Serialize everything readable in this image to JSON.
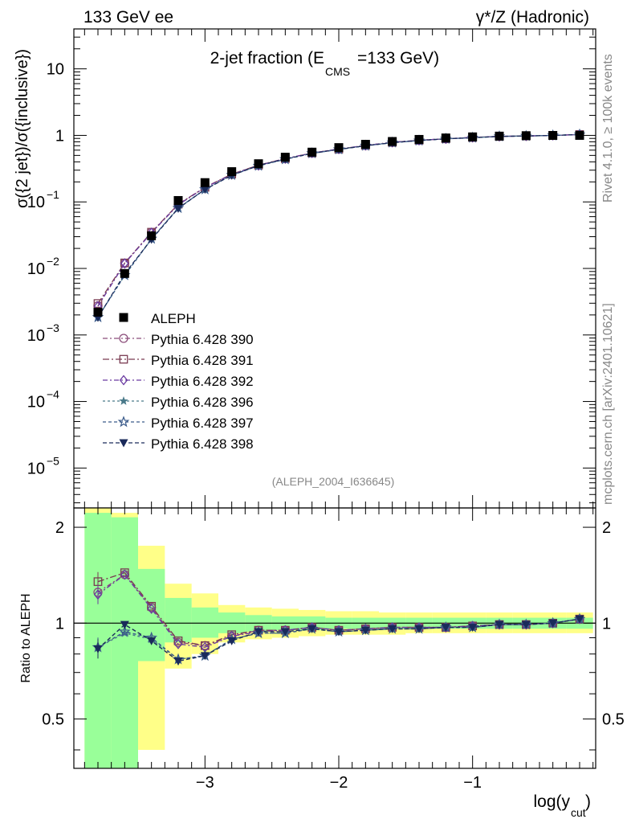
{
  "header": {
    "left_label": "133 GeV ee",
    "right_label": "γ*/Z (Hadronic)"
  },
  "side": {
    "rivet_label": "Rivet 4.1.0, ≥ 100k events",
    "mcplots_label": "mcplots.cern.ch [arXiv:2401.10621]"
  },
  "colors": {
    "data": "#000000",
    "band_inner": "#99ff99",
    "band_outer": "#ffff88",
    "s390": "#8b4d7a",
    "s391": "#7a3b52",
    "s392": "#6a3aa0",
    "s396": "#4a7a8a",
    "s397": "#3a5a8a",
    "s398": "#1a2a5a"
  },
  "chart_data": {
    "type": "scatter",
    "title_main": "2-jet fraction (E",
    "title_sub": "CMS",
    "title_tail": "=133 GeV)",
    "watermark": "(ALEPH_2004_I636645)",
    "ylabel": "σ({2 jet})/σ({inclusive})",
    "ratio_ylabel": "Ratio to ALEPH",
    "xlabel_main": "log(y",
    "xlabel_sub": "cut",
    "xlabel_tail": ")",
    "xlim": [
      -3.98,
      -0.08
    ],
    "ylim_log10": [
      -5.6,
      1.6
    ],
    "ratio_ylim": [
      0.35,
      2.3
    ],
    "x_ticks": [
      {
        "value": -3,
        "label": "−3"
      },
      {
        "value": -2,
        "label": "−2"
      },
      {
        "value": -1,
        "label": "−1"
      }
    ],
    "y_ticks": [
      {
        "exp": 1,
        "mant": "10",
        "sup": ""
      },
      {
        "exp": 0,
        "mant": "1",
        "sup": ""
      },
      {
        "exp": -1,
        "mant": "10",
        "sup": "−1"
      },
      {
        "exp": -2,
        "mant": "10",
        "sup": "−2"
      },
      {
        "exp": -3,
        "mant": "10",
        "sup": "−3"
      },
      {
        "exp": -4,
        "mant": "10",
        "sup": "−4"
      },
      {
        "exp": -5,
        "mant": "10",
        "sup": "−5"
      }
    ],
    "ratio_ticks": [
      {
        "value": 2,
        "label": "2"
      },
      {
        "value": 1,
        "label": "1"
      },
      {
        "value": 0.5,
        "label": "0.5"
      }
    ],
    "x": [
      -3.8,
      -3.6,
      -3.4,
      -3.2,
      -3.0,
      -2.8,
      -2.6,
      -2.4,
      -2.2,
      -2.0,
      -1.8,
      -1.6,
      -1.4,
      -1.2,
      -1.0,
      -0.8,
      -0.6,
      -0.4,
      -0.2
    ],
    "data_series": {
      "name": "ALEPH",
      "values": [
        0.0022,
        0.0084,
        0.031,
        0.105,
        0.195,
        0.285,
        0.375,
        0.47,
        0.56,
        0.655,
        0.735,
        0.81,
        0.87,
        0.915,
        0.95,
        0.975,
        0.99,
        0.998,
        1.0
      ]
    },
    "bands": [
      {
        "x0": -3.9,
        "x1": -3.7,
        "in_lo": 0.35,
        "in_hi": 2.22,
        "out_lo": 0.35,
        "out_hi": 2.3
      },
      {
        "x0": -3.7,
        "x1": -3.5,
        "in_lo": 0.35,
        "in_hi": 2.15,
        "out_lo": 0.35,
        "out_hi": 2.22
      },
      {
        "x0": -3.5,
        "x1": -3.3,
        "in_lo": 0.76,
        "in_hi": 1.48,
        "out_lo": 0.4,
        "out_hi": 1.75
      },
      {
        "x0": -3.3,
        "x1": -3.1,
        "in_lo": 0.87,
        "in_hi": 1.2,
        "out_lo": 0.72,
        "out_hi": 1.33
      },
      {
        "x0": -3.1,
        "x1": -2.9,
        "in_lo": 0.9,
        "in_hi": 1.12,
        "out_lo": 0.8,
        "out_hi": 1.24
      },
      {
        "x0": -2.9,
        "x1": -2.7,
        "in_lo": 0.93,
        "in_hi": 1.08,
        "out_lo": 0.87,
        "out_hi": 1.14
      },
      {
        "x0": -2.7,
        "x1": -2.5,
        "in_lo": 0.94,
        "in_hi": 1.06,
        "out_lo": 0.89,
        "out_hi": 1.12
      },
      {
        "x0": -2.5,
        "x1": -2.3,
        "in_lo": 0.95,
        "in_hi": 1.05,
        "out_lo": 0.9,
        "out_hi": 1.11
      },
      {
        "x0": -2.3,
        "x1": -2.1,
        "in_lo": 0.95,
        "in_hi": 1.05,
        "out_lo": 0.91,
        "out_hi": 1.1
      },
      {
        "x0": -2.1,
        "x1": -1.9,
        "in_lo": 0.96,
        "in_hi": 1.04,
        "out_lo": 0.92,
        "out_hi": 1.09
      },
      {
        "x0": -1.9,
        "x1": -1.7,
        "in_lo": 0.96,
        "in_hi": 1.04,
        "out_lo": 0.92,
        "out_hi": 1.09
      },
      {
        "x0": -1.7,
        "x1": -1.5,
        "in_lo": 0.96,
        "in_hi": 1.04,
        "out_lo": 0.92,
        "out_hi": 1.08
      },
      {
        "x0": -1.5,
        "x1": -1.3,
        "in_lo": 0.96,
        "in_hi": 1.04,
        "out_lo": 0.93,
        "out_hi": 1.08
      },
      {
        "x0": -1.3,
        "x1": -1.1,
        "in_lo": 0.96,
        "in_hi": 1.04,
        "out_lo": 0.93,
        "out_hi": 1.08
      },
      {
        "x0": -1.1,
        "x1": -0.9,
        "in_lo": 0.96,
        "in_hi": 1.04,
        "out_lo": 0.93,
        "out_hi": 1.08
      },
      {
        "x0": -0.9,
        "x1": -0.7,
        "in_lo": 0.96,
        "in_hi": 1.04,
        "out_lo": 0.93,
        "out_hi": 1.08
      },
      {
        "x0": -0.7,
        "x1": -0.5,
        "in_lo": 0.96,
        "in_hi": 1.04,
        "out_lo": 0.93,
        "out_hi": 1.08
      },
      {
        "x0": -0.5,
        "x1": -0.3,
        "in_lo": 0.96,
        "in_hi": 1.04,
        "out_lo": 0.93,
        "out_hi": 1.08
      },
      {
        "x0": -0.3,
        "x1": -0.1,
        "in_lo": 0.96,
        "in_hi": 1.04,
        "out_lo": 0.93,
        "out_hi": 1.08
      }
    ],
    "series": [
      {
        "name": "Pythia 6.428 390",
        "marker": "circle",
        "dash": "6,3,2,3",
        "color_key": "s390",
        "ratios": [
          1.25,
          1.42,
          1.12,
          0.87,
          0.85,
          0.91,
          0.95,
          0.95,
          0.97,
          0.95,
          0.96,
          0.97,
          0.97,
          0.97,
          0.98,
          0.99,
          0.99,
          1.0,
          1.03
        ]
      },
      {
        "name": "Pythia 6.428 391",
        "marker": "square",
        "dash": "8,3,2,3",
        "color_key": "s391",
        "ratios": [
          1.35,
          1.44,
          1.13,
          0.88,
          0.85,
          0.92,
          0.95,
          0.95,
          0.97,
          0.95,
          0.96,
          0.97,
          0.97,
          0.97,
          0.98,
          0.99,
          0.99,
          1.0,
          1.03
        ]
      },
      {
        "name": "Pythia 6.428 392",
        "marker": "diamond",
        "dash": "6,3,2,3",
        "color_key": "s392",
        "ratios": [
          1.23,
          1.42,
          1.11,
          0.86,
          0.84,
          0.91,
          0.94,
          0.95,
          0.97,
          0.95,
          0.96,
          0.97,
          0.97,
          0.97,
          0.98,
          0.99,
          0.99,
          1.0,
          1.03
        ]
      },
      {
        "name": "Pythia 6.428 396",
        "marker": "star",
        "dash": "3,3",
        "color_key": "s396",
        "ratios": [
          0.84,
          0.93,
          0.89,
          0.77,
          0.79,
          0.89,
          0.93,
          0.93,
          0.96,
          0.94,
          0.95,
          0.96,
          0.96,
          0.97,
          0.97,
          0.99,
          0.99,
          1.0,
          1.03
        ]
      },
      {
        "name": "Pythia 6.428 397",
        "marker": "star-open",
        "dash": "4,3",
        "color_key": "s397",
        "ratios": [
          0.84,
          0.94,
          0.9,
          0.77,
          0.79,
          0.89,
          0.93,
          0.93,
          0.96,
          0.94,
          0.95,
          0.96,
          0.96,
          0.97,
          0.97,
          0.99,
          0.99,
          1.0,
          1.03
        ]
      },
      {
        "name": "Pythia 6.428 398",
        "marker": "triangle-down",
        "dash": "5,3",
        "color_key": "s398",
        "ratios": [
          0.83,
          0.99,
          0.88,
          0.76,
          0.79,
          0.88,
          0.94,
          0.94,
          0.96,
          0.94,
          0.95,
          0.96,
          0.96,
          0.97,
          0.97,
          0.99,
          0.99,
          1.0,
          1.03
        ]
      }
    ]
  }
}
